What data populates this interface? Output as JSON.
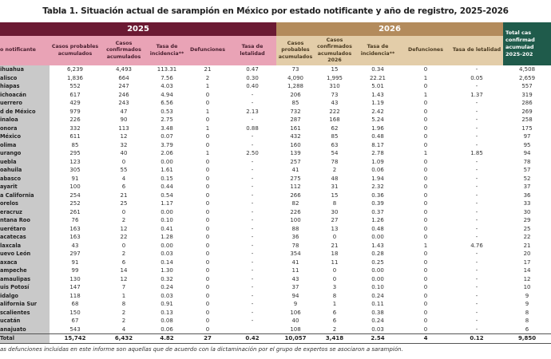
{
  "title": "Tabla 1. Situación actual de sarampión en México por estado notificante y año de registro, 2025-2026",
  "colors": {
    "header_2025": "#6b1a33",
    "subheader_2025": "#e9a3b6",
    "header_2026": "#b38b5c",
    "subheader_2026": "#e3cda9",
    "total_header": "#1f5b4b",
    "state_column": "#c9c9c9"
  },
  "headers": {
    "year_2025": "2025",
    "year_2026": "2026",
    "state": "o notificante",
    "total_confirmed": [
      "Total cas",
      "confirmad",
      "acumulad",
      "2025-202"
    ],
    "cols_2025": [
      "Casos probables acumulados",
      "Casos confirmados acumulados",
      "Tasa de incidencia**",
      "Defunciones",
      "Tasa de letalidad"
    ],
    "cols_2026": [
      "Casos probables acumulados",
      "Casos confirmados acumulados 2026",
      "Tasa de incidencia**",
      "Defunciones",
      "Tasa de letalidad"
    ]
  },
  "rows": [
    [
      "ihuahua",
      "6,239",
      "4,493",
      "113.31",
      "21",
      "0.47",
      "73",
      "15",
      "0.34",
      "0",
      "-",
      "4,508"
    ],
    [
      "alisco",
      "1,836",
      "664",
      "7.56",
      "2",
      "0.30",
      "4,090",
      "1,995",
      "22.21",
      "1",
      "0.05",
      "2,659"
    ],
    [
      "hiapas",
      "552",
      "247",
      "4.03",
      "1",
      "0.40",
      "1,288",
      "310",
      "5.01",
      "0",
      "-",
      "557"
    ],
    [
      "ichoacán",
      "617",
      "246",
      "4.94",
      "0",
      "-",
      "206",
      "73",
      "1.43",
      "1",
      "1.37",
      "319"
    ],
    [
      "uerrero",
      "429",
      "243",
      "6.56",
      "0",
      "-",
      "85",
      "43",
      "1.19",
      "0",
      "-",
      "286"
    ],
    [
      "d de México",
      "979",
      "47",
      "0.53",
      "1",
      "2.13",
      "732",
      "222",
      "2.42",
      "0",
      "-",
      "269"
    ],
    [
      "inaloa",
      "226",
      "90",
      "2.75",
      "0",
      "-",
      "287",
      "168",
      "5.24",
      "0",
      "-",
      "258"
    ],
    [
      "onora",
      "332",
      "113",
      "3.48",
      "1",
      "0.88",
      "161",
      "62",
      "1.96",
      "0",
      "-",
      "175"
    ],
    [
      "México",
      "611",
      "12",
      "0.07",
      "0",
      "-",
      "432",
      "85",
      "0.48",
      "0",
      "-",
      "97"
    ],
    [
      "olima",
      "85",
      "32",
      "3.79",
      "0",
      "-",
      "160",
      "63",
      "8.17",
      "0",
      "-",
      "95"
    ],
    [
      "urango",
      "295",
      "40",
      "2.06",
      "1",
      "2.50",
      "139",
      "54",
      "2.78",
      "1",
      "1.85",
      "94"
    ],
    [
      "uebla",
      "123",
      "0",
      "0.00",
      "0",
      "-",
      "257",
      "78",
      "1.09",
      "0",
      "-",
      "78"
    ],
    [
      "oahuila",
      "305",
      "55",
      "1.61",
      "0",
      "-",
      "41",
      "2",
      "0.06",
      "0",
      "-",
      "57"
    ],
    [
      "abasco",
      "91",
      "4",
      "0.15",
      "0",
      "-",
      "275",
      "48",
      "1.94",
      "0",
      "-",
      "52"
    ],
    [
      "ayarit",
      "100",
      "6",
      "0.44",
      "0",
      "-",
      "112",
      "31",
      "2.32",
      "0",
      "-",
      "37"
    ],
    [
      "a California",
      "254",
      "21",
      "0.54",
      "0",
      "-",
      "266",
      "15",
      "0.36",
      "0",
      "-",
      "36"
    ],
    [
      "orelos",
      "252",
      "25",
      "1.17",
      "0",
      "-",
      "82",
      "8",
      "0.39",
      "0",
      "-",
      "33"
    ],
    [
      "eracruz",
      "261",
      "0",
      "0.00",
      "0",
      "-",
      "226",
      "30",
      "0.37",
      "0",
      "-",
      "30"
    ],
    [
      "ntana Roo",
      "76",
      "2",
      "0.10",
      "0",
      "-",
      "100",
      "27",
      "1.26",
      "0",
      "-",
      "29"
    ],
    [
      "uerétaro",
      "163",
      "12",
      "0.41",
      "0",
      "-",
      "88",
      "13",
      "0.48",
      "0",
      "-",
      "25"
    ],
    [
      "acatecas",
      "163",
      "22",
      "1.28",
      "0",
      "-",
      "36",
      "0",
      "0.00",
      "0",
      "-",
      "22"
    ],
    [
      "laxcala",
      "43",
      "0",
      "0.00",
      "0",
      "-",
      "78",
      "21",
      "1.43",
      "1",
      "4.76",
      "21"
    ],
    [
      "uevo León",
      "297",
      "2",
      "0.03",
      "0",
      "-",
      "354",
      "18",
      "0.28",
      "0",
      "-",
      "20"
    ],
    [
      "axaca",
      "91",
      "6",
      "0.14",
      "0",
      "-",
      "41",
      "11",
      "0.25",
      "0",
      "-",
      "17"
    ],
    [
      "ampeche",
      "99",
      "14",
      "1.30",
      "0",
      "-",
      "11",
      "0",
      "0.00",
      "0",
      "-",
      "14"
    ],
    [
      "amaulipas",
      "130",
      "12",
      "0.32",
      "0",
      "-",
      "43",
      "0",
      "0.00",
      "0",
      "-",
      "12"
    ],
    [
      "uis Potosí",
      "147",
      "7",
      "0.24",
      "0",
      "-",
      "37",
      "3",
      "0.10",
      "0",
      "-",
      "10"
    ],
    [
      "idalgo",
      "118",
      "1",
      "0.03",
      "0",
      "-",
      "94",
      "8",
      "0.24",
      "0",
      "-",
      "9"
    ],
    [
      "alifornia Sur",
      "68",
      "8",
      "0.91",
      "0",
      "-",
      "9",
      "1",
      "0.11",
      "0",
      "-",
      "9"
    ],
    [
      "scalientes",
      "150",
      "2",
      "0.13",
      "0",
      "-",
      "106",
      "6",
      "0.38",
      "0",
      "-",
      "8"
    ],
    [
      "ucatán",
      "67",
      "2",
      "0.08",
      "0",
      "-",
      "40",
      "6",
      "0.24",
      "0",
      "-",
      "8"
    ],
    [
      "anajuato",
      "543",
      "4",
      "0.06",
      "0",
      "",
      "108",
      "2",
      "0.03",
      "0",
      "-",
      "6"
    ]
  ],
  "total": [
    "Total",
    "15,742",
    "6,432",
    "4.82",
    "27",
    "0.42",
    "10,057",
    "3,418",
    "2.54",
    "4",
    "0.12",
    "9,850"
  ],
  "footnote": "as defunciones incluidas en este informe son aquellas que de acuerdo con la dictaminación por el grupo de expertos se asociaron a sarampión."
}
